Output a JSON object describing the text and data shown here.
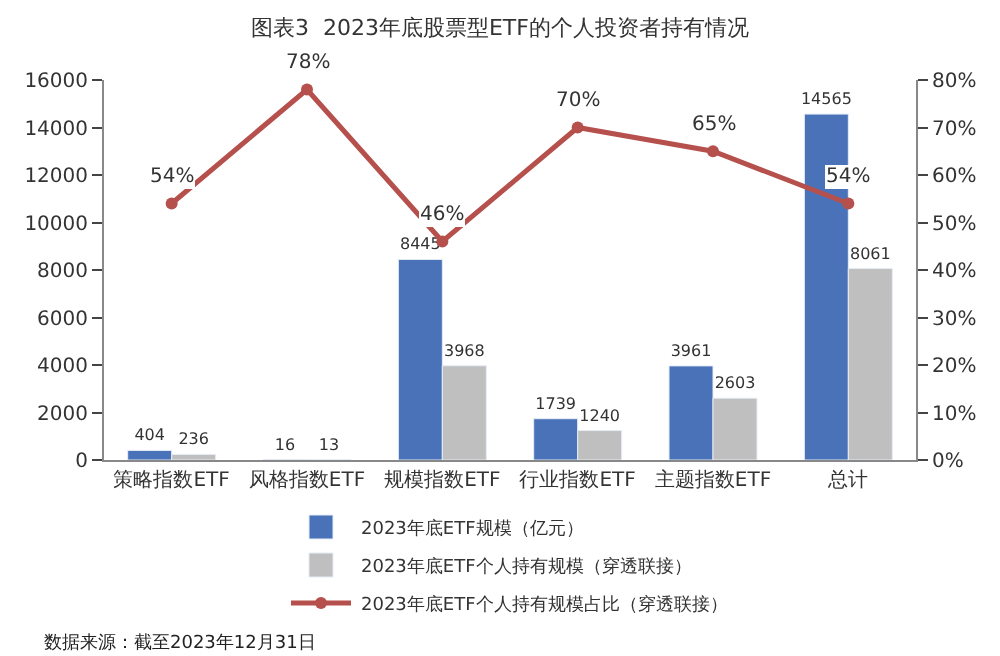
{
  "chart_data": {
    "type": "bar",
    "title": "图表3  2023年底股票型ETF的个人投资者持有情况",
    "categories": [
      "策略指数ETF",
      "风格指数ETF",
      "规模指数ETF",
      "行业指数ETF",
      "主题指数ETF",
      "总计"
    ],
    "series": [
      {
        "name": "2023年底ETF规模（亿元）",
        "color": "#4a72b8",
        "values": [
          404,
          16,
          8445,
          1739,
          3961,
          14565
        ]
      },
      {
        "name": "2023年底ETF个人持有规模（穿透联接）",
        "color": "#bfbfbf",
        "values": [
          236,
          13,
          3968,
          1240,
          2603,
          8061
        ]
      },
      {
        "name": "2023年底ETF个人持有规模占比（穿透联接）",
        "type": "line",
        "axis": "y2",
        "color": "#b5504c",
        "marker": "circle",
        "values": [
          54,
          78,
          46,
          70,
          65,
          54
        ],
        "value_labels": [
          "54%",
          "78%",
          "46%",
          "70%",
          "65%",
          "54%"
        ]
      }
    ],
    "data_labels": true,
    "ylim": [
      0,
      16000
    ],
    "yticks": [
      0,
      2000,
      4000,
      6000,
      8000,
      10000,
      12000,
      14000,
      16000
    ],
    "y2lim": [
      0,
      80
    ],
    "y2ticks": [
      {
        "value": 0,
        "label": "0%"
      },
      {
        "value": 10,
        "label": "10%"
      },
      {
        "value": 20,
        "label": "20%"
      },
      {
        "value": 30,
        "label": "30%"
      },
      {
        "value": 40,
        "label": "40%"
      },
      {
        "value": 50,
        "label": "50%"
      },
      {
        "value": 60,
        "label": "60%"
      },
      {
        "value": 70,
        "label": "70%"
      },
      {
        "value": 80,
        "label": "80%"
      }
    ],
    "legend": "bottom",
    "annotations": [
      "数据来源：截至2023年12月31日"
    ]
  }
}
